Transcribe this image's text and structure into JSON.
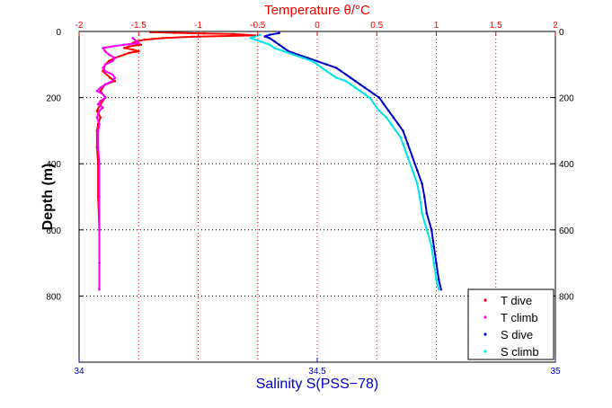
{
  "chart_data": {
    "type": "scatter",
    "title": "",
    "top_axis": {
      "label": "Temperature θ/°C",
      "range": [
        -2,
        2
      ],
      "ticks": [
        "-2",
        "-1.5",
        "-1",
        "-0.5",
        "0",
        "0.5",
        "1",
        "1.5",
        "2"
      ],
      "color": "#ff0000"
    },
    "bottom_axis": {
      "label": "Salinity S(PSS−78)",
      "range": [
        34,
        35
      ],
      "ticks": [
        "34",
        "34.5",
        "35"
      ],
      "color": "#0000cc"
    },
    "y_axis": {
      "label": "Depth (m)",
      "range": [
        0,
        1000
      ],
      "reversed": true,
      "ticks": [
        "0",
        "200",
        "400",
        "600",
        "800"
      ],
      "color": "#000000"
    },
    "grid": true,
    "legend_position": "bottom-right",
    "series": [
      {
        "name": "T dive",
        "axis": "top",
        "color": "#ff0000",
        "points": [
          [
            -1.4,
            2
          ],
          [
            -1.2,
            4
          ],
          [
            -0.95,
            6
          ],
          [
            -0.7,
            8
          ],
          [
            -0.52,
            12
          ],
          [
            -1.05,
            16
          ],
          [
            -1.3,
            20
          ],
          [
            -1.45,
            25
          ],
          [
            -1.52,
            30
          ],
          [
            -1.55,
            35
          ],
          [
            -1.48,
            40
          ],
          [
            -1.58,
            45
          ],
          [
            -1.62,
            50
          ],
          [
            -1.55,
            55
          ],
          [
            -1.5,
            60
          ],
          [
            -1.58,
            65
          ],
          [
            -1.62,
            70
          ],
          [
            -1.7,
            80
          ],
          [
            -1.75,
            90
          ],
          [
            -1.78,
            100
          ],
          [
            -1.8,
            120
          ],
          [
            -1.74,
            140
          ],
          [
            -1.7,
            150
          ],
          [
            -1.78,
            160
          ],
          [
            -1.82,
            180
          ],
          [
            -1.78,
            200
          ],
          [
            -1.82,
            220
          ],
          [
            -1.85,
            240
          ],
          [
            -1.82,
            260
          ],
          [
            -1.84,
            280
          ],
          [
            -1.85,
            300
          ],
          [
            -1.85,
            350
          ],
          [
            -1.84,
            400
          ],
          [
            -1.84,
            500
          ],
          [
            -1.83,
            600
          ],
          [
            -1.83,
            700
          ],
          [
            -1.83,
            780
          ]
        ]
      },
      {
        "name": "T climb",
        "axis": "top",
        "color": "#ff00ff",
        "points": [
          [
            -1.55,
            20
          ],
          [
            -1.5,
            35
          ],
          [
            -1.62,
            40
          ],
          [
            -1.72,
            45
          ],
          [
            -1.8,
            50
          ],
          [
            -1.78,
            60
          ],
          [
            -1.75,
            70
          ],
          [
            -1.7,
            80
          ],
          [
            -1.72,
            90
          ],
          [
            -1.78,
            100
          ],
          [
            -1.8,
            110
          ],
          [
            -1.78,
            120
          ],
          [
            -1.72,
            130
          ],
          [
            -1.7,
            140
          ],
          [
            -1.72,
            150
          ],
          [
            -1.78,
            160
          ],
          [
            -1.82,
            170
          ],
          [
            -1.85,
            180
          ],
          [
            -1.8,
            190
          ],
          [
            -1.78,
            200
          ],
          [
            -1.82,
            210
          ],
          [
            -1.84,
            220
          ],
          [
            -1.8,
            230
          ],
          [
            -1.83,
            240
          ],
          [
            -1.85,
            260
          ],
          [
            -1.83,
            280
          ],
          [
            -1.84,
            300
          ],
          [
            -1.84,
            350
          ],
          [
            -1.83,
            400
          ],
          [
            -1.83,
            500
          ],
          [
            -1.83,
            600
          ],
          [
            -1.83,
            700
          ],
          [
            -1.83,
            780
          ]
        ]
      },
      {
        "name": "S dive",
        "axis": "bottom",
        "color": "#0000cc",
        "points": [
          [
            34.42,
            5
          ],
          [
            34.4,
            10
          ],
          [
            34.39,
            15
          ],
          [
            34.4,
            20
          ],
          [
            34.41,
            30
          ],
          [
            34.42,
            40
          ],
          [
            34.43,
            50
          ],
          [
            34.44,
            60
          ],
          [
            34.46,
            70
          ],
          [
            34.48,
            80
          ],
          [
            34.5,
            90
          ],
          [
            34.52,
            100
          ],
          [
            34.54,
            110
          ],
          [
            34.55,
            120
          ],
          [
            34.56,
            130
          ],
          [
            34.57,
            140
          ],
          [
            34.58,
            150
          ],
          [
            34.59,
            160
          ],
          [
            34.6,
            170
          ],
          [
            34.61,
            180
          ],
          [
            34.62,
            190
          ],
          [
            34.63,
            200
          ],
          [
            34.64,
            220
          ],
          [
            34.65,
            240
          ],
          [
            34.66,
            260
          ],
          [
            34.67,
            280
          ],
          [
            34.68,
            300
          ],
          [
            34.685,
            320
          ],
          [
            34.69,
            340
          ],
          [
            34.7,
            380
          ],
          [
            34.71,
            420
          ],
          [
            34.72,
            460
          ],
          [
            34.725,
            500
          ],
          [
            34.73,
            550
          ],
          [
            34.74,
            600
          ],
          [
            34.745,
            650
          ],
          [
            34.75,
            700
          ],
          [
            34.755,
            750
          ],
          [
            34.76,
            780
          ]
        ]
      },
      {
        "name": "S climb",
        "axis": "bottom",
        "color": "#00e5e5",
        "points": [
          [
            34.38,
            10
          ],
          [
            34.36,
            20
          ],
          [
            34.38,
            30
          ],
          [
            34.4,
            40
          ],
          [
            34.41,
            50
          ],
          [
            34.43,
            60
          ],
          [
            34.45,
            70
          ],
          [
            34.47,
            80
          ],
          [
            34.49,
            90
          ],
          [
            34.5,
            100
          ],
          [
            34.51,
            110
          ],
          [
            34.52,
            120
          ],
          [
            34.53,
            130
          ],
          [
            34.54,
            140
          ],
          [
            34.56,
            150
          ],
          [
            34.57,
            160
          ],
          [
            34.58,
            170
          ],
          [
            34.59,
            180
          ],
          [
            34.6,
            190
          ],
          [
            34.61,
            200
          ],
          [
            34.62,
            220
          ],
          [
            34.63,
            240
          ],
          [
            34.645,
            260
          ],
          [
            34.655,
            280
          ],
          [
            34.665,
            300
          ],
          [
            34.675,
            320
          ],
          [
            34.68,
            340
          ],
          [
            34.69,
            380
          ],
          [
            34.7,
            420
          ],
          [
            34.71,
            460
          ],
          [
            34.715,
            500
          ],
          [
            34.72,
            550
          ],
          [
            34.73,
            600
          ],
          [
            34.74,
            650
          ],
          [
            34.745,
            700
          ],
          [
            34.75,
            750
          ],
          [
            34.755,
            780
          ]
        ]
      }
    ]
  }
}
